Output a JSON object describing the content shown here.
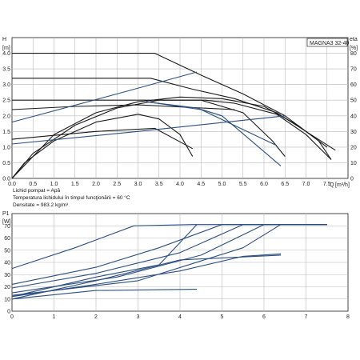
{
  "chart_data": [
    {
      "type": "line",
      "title": "MAGNA3 32-40",
      "ylabel": "H",
      "yunit": "[m]",
      "ylabel_right": "eta",
      "yunit_right": "[%]",
      "xlabel": "Q",
      "xunit": "[m³/h]",
      "xlim": [
        0,
        8
      ],
      "ylim": [
        0,
        4.5
      ],
      "ylim_right": [
        0,
        90
      ],
      "xticks": [
        "0.0",
        "0.5",
        "1.0",
        "1.5",
        "2.0",
        "2.5",
        "3.0",
        "3.5",
        "4.0",
        "4.5",
        "5.0",
        "5.5",
        "6.0",
        "6.5",
        "7.0",
        "7.5"
      ],
      "yticks": [
        "0.0",
        "0.5",
        "1.0",
        "1.5",
        "2.0",
        "2.5",
        "3.0",
        "3.5",
        "4.0"
      ],
      "yticks_right": [
        "0",
        "10",
        "20",
        "30",
        "40",
        "50",
        "60",
        "70",
        "80"
      ],
      "grid": true,
      "series": [
        {
          "color": "#1a1a1a",
          "x": [
            0,
            3.4,
            4.5,
            5.5,
            6.5,
            7.3,
            7.6
          ],
          "y": [
            4.0,
            4.0,
            3.3,
            2.7,
            2.0,
            1.2,
            0.6
          ]
        },
        {
          "color": "#1a1a1a",
          "x": [
            0,
            3.3,
            4.3,
            5.3,
            6.3,
            7.0,
            7.7
          ],
          "y": [
            3.2,
            3.2,
            2.85,
            2.55,
            2.1,
            1.5,
            0.9
          ]
        },
        {
          "color": "#1a1a1a",
          "x": [
            0,
            3.3,
            4.6,
            5.3,
            6.3,
            7.0,
            7.6
          ],
          "y": [
            2.5,
            2.5,
            2.5,
            2.4,
            2.05,
            1.4,
            0.6
          ]
        },
        {
          "color": "#1a1a1a",
          "x": [
            0,
            1.5,
            3.0,
            5.3
          ],
          "y": [
            2.2,
            2.3,
            2.35,
            2.2
          ]
        },
        {
          "color": "#1a1a1a",
          "x": [
            0,
            2.0,
            3.4,
            4.3
          ],
          "y": [
            1.25,
            1.5,
            1.6,
            0.95
          ]
        },
        {
          "color": "#1a1a1a",
          "x": [
            0,
            0.3,
            1.0,
            2.0,
            3.0,
            3.5,
            4.0,
            4.3
          ],
          "y": [
            0,
            0.5,
            1.2,
            1.8,
            2.05,
            1.9,
            1.4,
            0.7
          ]
        },
        {
          "color": "#1a1a1a",
          "x": [
            0,
            0.5,
            1.5,
            2.5,
            3.5,
            4.5,
            5.5,
            6.2,
            6.5
          ],
          "y": [
            0,
            0.8,
            1.7,
            2.25,
            2.5,
            2.5,
            2.1,
            1.2,
            0.7
          ]
        },
        {
          "color": "#1a1a1a",
          "x": [
            0,
            1.0,
            2.0,
            3.0,
            4.0,
            5.0,
            6.0,
            6.8,
            7.5
          ],
          "y": [
            0,
            1.4,
            2.1,
            2.45,
            2.6,
            2.55,
            2.3,
            1.7,
            1.0
          ]
        },
        {
          "color": "#2c4f7e",
          "x": [
            0,
            2.5,
            4.4
          ],
          "y": [
            1.8,
            2.7,
            3.4
          ]
        },
        {
          "color": "#2c4f7e",
          "x": [
            0,
            3.0,
            6.5
          ],
          "y": [
            1.1,
            1.5,
            2.0
          ]
        },
        {
          "color": "#2c4f7e",
          "x": [
            3.2,
            4.5,
            6.3
          ],
          "y": [
            2.45,
            2.2,
            1.05
          ]
        },
        {
          "color": "#2c4f7e",
          "x": [
            3.2,
            4.4,
            5.0,
            6.4
          ],
          "y": [
            2.45,
            2.25,
            2.0,
            0.4
          ]
        }
      ]
    },
    {
      "type": "line",
      "ylabel": "P1",
      "yunit": "[W]",
      "xlim": [
        0,
        8
      ],
      "ylim": [
        0,
        80
      ],
      "xticks": [
        "0",
        "1",
        "2",
        "3",
        "4",
        "5",
        "6",
        "7",
        "8"
      ],
      "yticks": [
        "0",
        "10",
        "20",
        "30",
        "40",
        "50",
        "60",
        "70"
      ],
      "grid": true,
      "series": [
        {
          "color": "#2c4f7e",
          "x": [
            0,
            1.5,
            2.9,
            4.3,
            7.5
          ],
          "y": [
            35,
            52,
            70,
            71,
            71
          ]
        },
        {
          "color": "#2c4f7e",
          "x": [
            0,
            2.0,
            3.5,
            5.0,
            7.5
          ],
          "y": [
            22,
            36,
            52,
            71,
            71
          ]
        },
        {
          "color": "#2c4f7e",
          "x": [
            0,
            2.0,
            4.0,
            5.5,
            7.5
          ],
          "y": [
            19,
            31,
            48,
            71,
            71
          ]
        },
        {
          "color": "#2c4f7e",
          "x": [
            0,
            2.5,
            4.5,
            6.0,
            7.5
          ],
          "y": [
            15,
            28,
            46,
            71,
            71
          ]
        },
        {
          "color": "#2c4f7e",
          "x": [
            0,
            3.0,
            5.5,
            6.4,
            7.5
          ],
          "y": [
            13,
            25,
            52,
            71,
            71
          ]
        },
        {
          "color": "#2c4f7e",
          "x": [
            0,
            2.0,
            4.0,
            5.5,
            6.4
          ],
          "y": [
            12,
            22,
            33,
            45,
            47
          ]
        },
        {
          "color": "#2c4f7e",
          "x": [
            0,
            2.0,
            4.0,
            6.4
          ],
          "y": [
            10,
            25,
            42,
            46
          ]
        },
        {
          "color": "#2c4f7e",
          "x": [
            0,
            2.0,
            4.4
          ],
          "y": [
            10,
            17,
            18
          ]
        },
        {
          "color": "#2c4f7e",
          "x": [
            0,
            2.0,
            3.5,
            4.4
          ],
          "y": [
            12,
            28,
            38,
            71
          ]
        }
      ]
    }
  ],
  "notes": [
    "Lichid pompat = Apă",
    "Temperatura lichidului în timpul funcţionării = 60 °C",
    "Densitate = 983.2 kg/m³"
  ]
}
